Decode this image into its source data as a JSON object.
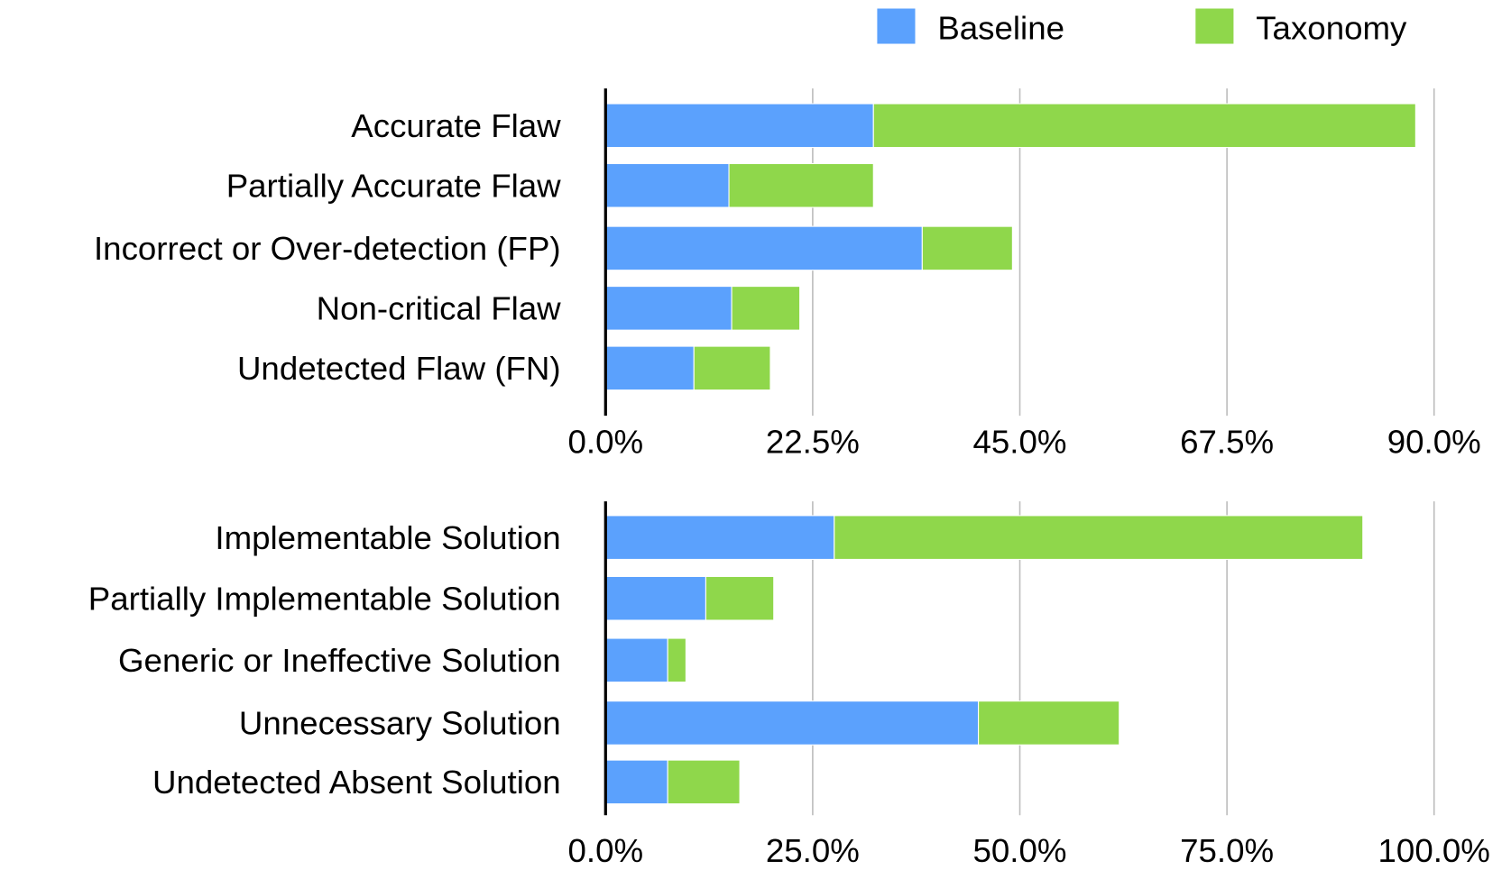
{
  "legend": {
    "position": "top-right",
    "items": [
      {
        "name": "Baseline",
        "color": "#5BA1FD"
      },
      {
        "name": "Taxonomy",
        "color": "#8FD74B"
      }
    ]
  },
  "chart_data": [
    {
      "type": "bar",
      "orientation": "horizontal",
      "stacked": true,
      "grid": true,
      "xlim": [
        0,
        90
      ],
      "ticks": [
        "0.0%",
        "22.5%",
        "45.0%",
        "67.5%",
        "90.0%"
      ],
      "tick_values": [
        0,
        22.5,
        45,
        67.5,
        90
      ],
      "categories": [
        "Accurate Flaw",
        "Partially Accurate Flaw",
        "Incorrect or Over-detection (FP)",
        "Non-critical Flaw",
        "Undetected Flaw (FN)"
      ],
      "series": [
        {
          "name": "Baseline",
          "values": [
            29.1,
            13.4,
            34.4,
            13.7,
            9.6
          ]
        },
        {
          "name": "Taxonomy",
          "values": [
            58.9,
            15.7,
            9.8,
            7.4,
            8.3
          ]
        }
      ]
    },
    {
      "type": "bar",
      "orientation": "horizontal",
      "stacked": true,
      "grid": true,
      "xlim": [
        0,
        100
      ],
      "ticks": [
        "0.0%",
        "25.0%",
        "50.0%",
        "75.0%",
        "100.0%"
      ],
      "tick_values": [
        0,
        25,
        50,
        75,
        100
      ],
      "categories": [
        "Implementable Solution",
        "Partially Implementable Solution",
        "Generic or Ineffective Solution",
        "Unnecessary Solution",
        "Undetected Absent Solution"
      ],
      "series": [
        {
          "name": "Baseline",
          "values": [
            27.6,
            12.1,
            7.5,
            45.0,
            7.5
          ]
        },
        {
          "name": "Taxonomy",
          "values": [
            63.8,
            8.2,
            2.2,
            17.0,
            8.7
          ]
        }
      ]
    }
  ]
}
